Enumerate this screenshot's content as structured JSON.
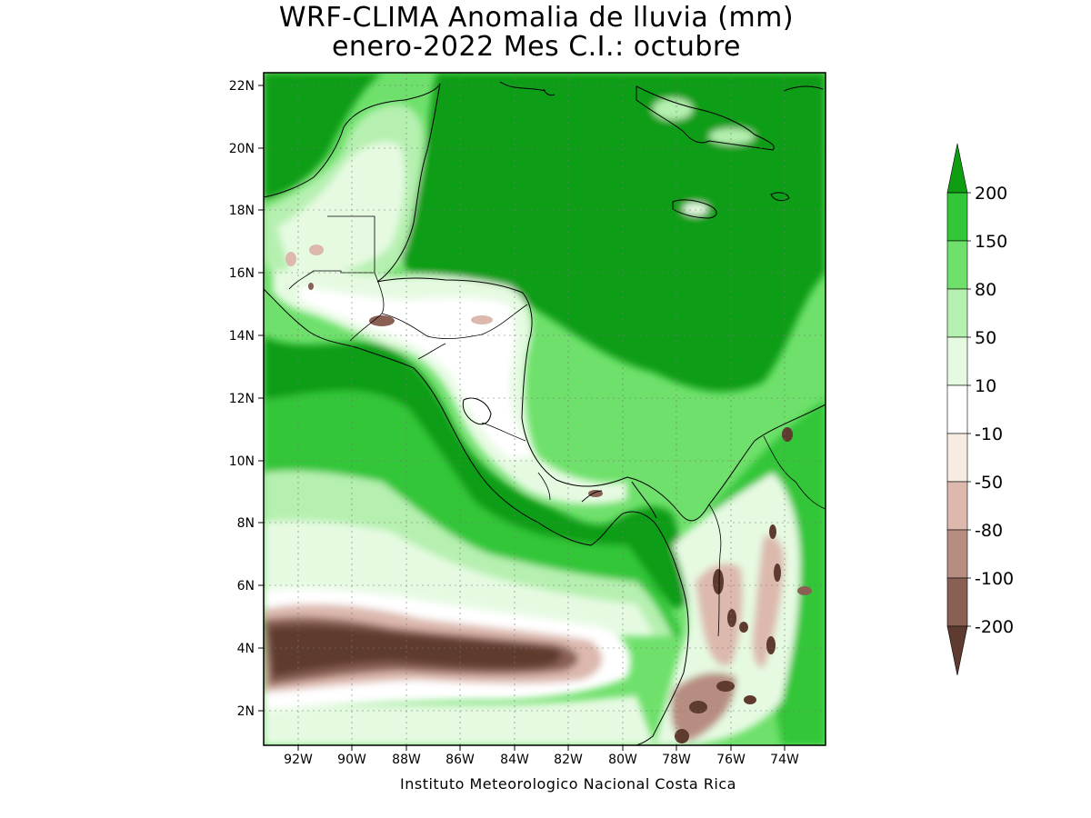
{
  "title": {
    "line1": "WRF-CLIMA Anomalia de lluvia (mm)",
    "line2": "enero-2022 Mes C.I.: octubre"
  },
  "credit": "Instituto Meteorologico Nacional Costa Rica",
  "axes": {
    "x_ticks": [
      "92W",
      "90W",
      "88W",
      "86W",
      "84W",
      "82W",
      "80W",
      "78W",
      "76W",
      "74W"
    ],
    "y_ticks": [
      "22N",
      "20N",
      "18N",
      "16N",
      "14N",
      "12N",
      "10N",
      "8N",
      "6N",
      "4N",
      "2N"
    ],
    "lon_range": [
      -93.3,
      -72.5
    ],
    "lat_range": [
      1.0,
      22.5
    ],
    "grid": true
  },
  "colorbar": {
    "labels": [
      "200",
      "150",
      "80",
      "50",
      "10",
      "-10",
      "-50",
      "-80",
      "-100",
      "-200"
    ],
    "colors": [
      "#0f9d12",
      "#33c638",
      "#6ee06b",
      "#b6f0b0",
      "#e6fae2",
      "#ffffff",
      "#f6ece2",
      "#dcb8ad",
      "#b88d81",
      "#8a6054",
      "#5e3a2f"
    ]
  }
}
